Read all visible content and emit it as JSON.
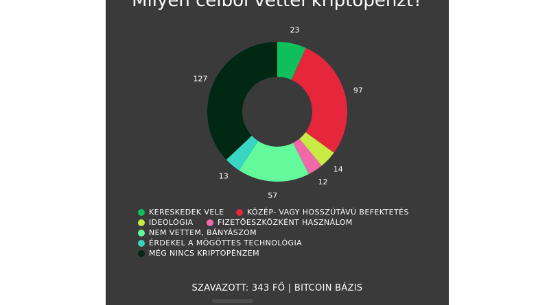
{
  "chart_data": {
    "type": "pie",
    "title": "Milyen célból vettél kriptopénzt?",
    "categories": [
      "KERESKEDEK VELE",
      "KÖZÉP- VAGY HOSSZÚTÁVÚ BEFEKTETÉS",
      "IDEOLÓGIA",
      "FIZETŐESZKÖZKÉNT HASZNÁLOM",
      "NEM VETTEM, BÁNYÁSZOM",
      "ÉRDEKEL A MÖGÖTTES TECHNOLÓGIA",
      "MÉG NINCS KRIPTOPÉNZEM"
    ],
    "values": [
      23,
      97,
      14,
      12,
      57,
      13,
      127
    ],
    "colors": [
      "#0fbf5c",
      "#e5263b",
      "#c9eb45",
      "#f06aaa",
      "#62fa9a",
      "#38d6c2",
      "#002813"
    ],
    "legend_position": "bottom",
    "donut": true
  },
  "footer": {
    "text": "SZAVAZOTT: 343 FŐ | BITCOIN BÁZIS"
  }
}
